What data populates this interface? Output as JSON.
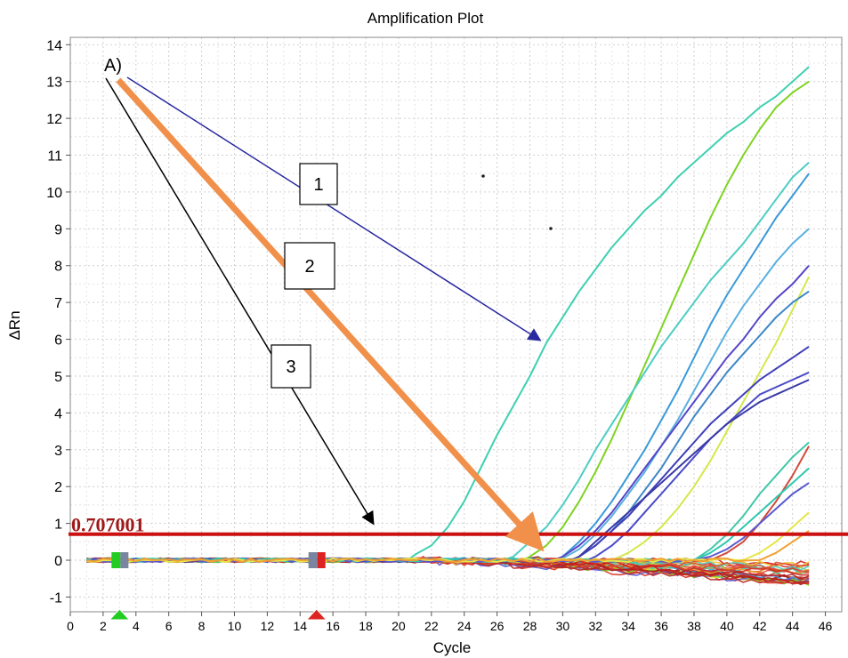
{
  "chart_data": {
    "type": "line",
    "title": "Amplification Plot",
    "xlabel": "Cycle",
    "ylabel": "ΔRn",
    "xlim": [
      0,
      47
    ],
    "ylim": [
      -1.4,
      14.2
    ],
    "x_ticks": [
      0,
      2,
      4,
      6,
      8,
      10,
      12,
      14,
      16,
      18,
      20,
      22,
      24,
      26,
      28,
      30,
      32,
      34,
      36,
      38,
      40,
      42,
      44,
      46
    ],
    "y_ticks": [
      -1,
      0,
      1,
      2,
      3,
      4,
      5,
      6,
      7,
      8,
      9,
      10,
      11,
      12,
      13,
      14
    ],
    "grid": true,
    "threshold": {
      "value": 0.707001,
      "label": "0.707001",
      "color": "#cc1111"
    },
    "baseline_markers": [
      {
        "cycle": 3,
        "color": "#22cc22"
      },
      {
        "cycle": 15,
        "color": "#dd2222"
      }
    ],
    "annotations": {
      "panel_label": "A)",
      "boxes": [
        {
          "label": "1",
          "color": "#2a2aa0"
        },
        {
          "label": "2",
          "color": "#f0904a"
        },
        {
          "label": "3",
          "color": "#000000"
        }
      ]
    },
    "series": [
      {
        "color": "#3fd0b0",
        "start": 21,
        "points": [
          [
            21,
            0.15
          ],
          [
            22,
            0.4
          ],
          [
            23,
            0.9
          ],
          [
            24,
            1.6
          ],
          [
            25,
            2.5
          ],
          [
            26,
            3.4
          ],
          [
            27,
            4.2
          ],
          [
            28,
            5.0
          ],
          [
            29,
            5.9
          ],
          [
            30,
            6.6
          ],
          [
            31,
            7.3
          ],
          [
            32,
            7.9
          ],
          [
            33,
            8.5
          ],
          [
            34,
            9.0
          ],
          [
            35,
            9.5
          ],
          [
            36,
            9.9
          ],
          [
            37,
            10.4
          ],
          [
            38,
            10.8
          ],
          [
            39,
            11.2
          ],
          [
            40,
            11.6
          ],
          [
            41,
            11.9
          ],
          [
            42,
            12.3
          ],
          [
            43,
            12.6
          ],
          [
            44,
            13.0
          ],
          [
            45,
            13.4
          ]
        ]
      },
      {
        "color": "#7ed321",
        "start": 28,
        "points": [
          [
            28,
            0.1
          ],
          [
            29,
            0.4
          ],
          [
            30,
            0.9
          ],
          [
            31,
            1.6
          ],
          [
            32,
            2.4
          ],
          [
            33,
            3.3
          ],
          [
            34,
            4.3
          ],
          [
            35,
            5.3
          ],
          [
            36,
            6.3
          ],
          [
            37,
            7.3
          ],
          [
            38,
            8.3
          ],
          [
            39,
            9.3
          ],
          [
            40,
            10.2
          ],
          [
            41,
            11.0
          ],
          [
            42,
            11.7
          ],
          [
            43,
            12.3
          ],
          [
            44,
            12.7
          ],
          [
            45,
            13.0
          ]
        ]
      },
      {
        "color": "#4ecdc4",
        "start": 27,
        "points": [
          [
            27,
            0.1
          ],
          [
            28,
            0.5
          ],
          [
            29,
            0.9
          ],
          [
            30,
            1.5
          ],
          [
            31,
            2.2
          ],
          [
            32,
            3.0
          ],
          [
            33,
            3.7
          ],
          [
            34,
            4.4
          ],
          [
            35,
            5.1
          ],
          [
            36,
            5.8
          ],
          [
            37,
            6.4
          ],
          [
            38,
            7.0
          ],
          [
            39,
            7.6
          ],
          [
            40,
            8.1
          ],
          [
            41,
            8.6
          ],
          [
            42,
            9.2
          ],
          [
            43,
            9.8
          ],
          [
            44,
            10.4
          ],
          [
            45,
            10.8
          ]
        ]
      },
      {
        "color": "#3a9ad9",
        "start": 30,
        "points": [
          [
            30,
            0.1
          ],
          [
            31,
            0.5
          ],
          [
            32,
            1.0
          ],
          [
            33,
            1.6
          ],
          [
            34,
            2.3
          ],
          [
            35,
            3.0
          ],
          [
            36,
            3.8
          ],
          [
            37,
            4.6
          ],
          [
            38,
            5.5
          ],
          [
            39,
            6.4
          ],
          [
            40,
            7.2
          ],
          [
            41,
            7.9
          ],
          [
            42,
            8.6
          ],
          [
            43,
            9.3
          ],
          [
            44,
            9.9
          ],
          [
            45,
            10.5
          ]
        ]
      },
      {
        "color": "#5ab0e0",
        "start": 30,
        "points": [
          [
            30,
            0.05
          ],
          [
            31,
            0.3
          ],
          [
            32,
            0.7
          ],
          [
            33,
            1.2
          ],
          [
            34,
            1.8
          ],
          [
            35,
            2.4
          ],
          [
            36,
            3.1
          ],
          [
            37,
            3.8
          ],
          [
            38,
            4.6
          ],
          [
            39,
            5.4
          ],
          [
            40,
            6.2
          ],
          [
            41,
            6.9
          ],
          [
            42,
            7.5
          ],
          [
            43,
            8.1
          ],
          [
            44,
            8.6
          ],
          [
            45,
            9.0
          ]
        ]
      },
      {
        "color": "#d4e84a",
        "start": 33,
        "points": [
          [
            33,
            0.0
          ],
          [
            34,
            0.2
          ],
          [
            35,
            0.5
          ],
          [
            36,
            0.9
          ],
          [
            37,
            1.4
          ],
          [
            38,
            2.0
          ],
          [
            39,
            2.7
          ],
          [
            40,
            3.5
          ],
          [
            41,
            4.3
          ],
          [
            42,
            5.1
          ],
          [
            43,
            5.9
          ],
          [
            44,
            6.8
          ],
          [
            45,
            7.7
          ]
        ]
      },
      {
        "color": "#5546c8",
        "start": 30,
        "points": [
          [
            30,
            0.1
          ],
          [
            31,
            0.4
          ],
          [
            32,
            0.8
          ],
          [
            33,
            1.3
          ],
          [
            34,
            1.9
          ],
          [
            35,
            2.5
          ],
          [
            36,
            3.1
          ],
          [
            37,
            3.7
          ],
          [
            38,
            4.3
          ],
          [
            39,
            4.9
          ],
          [
            40,
            5.5
          ],
          [
            41,
            6.0
          ],
          [
            42,
            6.6
          ],
          [
            43,
            7.1
          ],
          [
            44,
            7.5
          ],
          [
            45,
            8.0
          ]
        ]
      },
      {
        "color": "#3d87c7",
        "start": 31,
        "points": [
          [
            31,
            0.1
          ],
          [
            32,
            0.4
          ],
          [
            33,
            0.8
          ],
          [
            34,
            1.3
          ],
          [
            35,
            1.9
          ],
          [
            36,
            2.5
          ],
          [
            37,
            3.2
          ],
          [
            38,
            3.9
          ],
          [
            39,
            4.5
          ],
          [
            40,
            5.1
          ],
          [
            41,
            5.6
          ],
          [
            42,
            6.1
          ],
          [
            43,
            6.6
          ],
          [
            44,
            7.0
          ],
          [
            45,
            7.3
          ]
        ]
      },
      {
        "color": "#3f3fb8",
        "start": 31,
        "points": [
          [
            31,
            0.1
          ],
          [
            32,
            0.4
          ],
          [
            33,
            0.8
          ],
          [
            34,
            1.2
          ],
          [
            35,
            1.7
          ],
          [
            36,
            2.2
          ],
          [
            37,
            2.7
          ],
          [
            38,
            3.2
          ],
          [
            39,
            3.7
          ],
          [
            40,
            4.1
          ],
          [
            41,
            4.5
          ],
          [
            42,
            4.9
          ],
          [
            43,
            5.2
          ],
          [
            44,
            5.5
          ],
          [
            45,
            5.8
          ]
        ]
      },
      {
        "color": "#4a4ac8",
        "start": 32,
        "points": [
          [
            32,
            0.1
          ],
          [
            33,
            0.4
          ],
          [
            34,
            0.8
          ],
          [
            35,
            1.3
          ],
          [
            36,
            1.8
          ],
          [
            37,
            2.3
          ],
          [
            38,
            2.8
          ],
          [
            39,
            3.3
          ],
          [
            40,
            3.7
          ],
          [
            41,
            4.1
          ],
          [
            42,
            4.5
          ],
          [
            43,
            4.7
          ],
          [
            44,
            4.9
          ],
          [
            45,
            5.1
          ]
        ]
      },
      {
        "color": "#3a3aa8",
        "start": 31,
        "points": [
          [
            31,
            0.1
          ],
          [
            32,
            0.5
          ],
          [
            33,
            0.9
          ],
          [
            34,
            1.3
          ],
          [
            35,
            1.7
          ],
          [
            36,
            2.1
          ],
          [
            37,
            2.5
          ],
          [
            38,
            2.9
          ],
          [
            39,
            3.3
          ],
          [
            40,
            3.7
          ],
          [
            41,
            4.0
          ],
          [
            42,
            4.3
          ],
          [
            43,
            4.5
          ],
          [
            44,
            4.7
          ],
          [
            45,
            4.9
          ]
        ]
      },
      {
        "color": "#40c8a8",
        "start": 38,
        "points": [
          [
            38,
            0.0
          ],
          [
            39,
            0.3
          ],
          [
            40,
            0.7
          ],
          [
            41,
            1.2
          ],
          [
            42,
            1.8
          ],
          [
            43,
            2.3
          ],
          [
            44,
            2.8
          ],
          [
            45,
            3.2
          ]
        ]
      },
      {
        "color": "#d24a3a",
        "start": 39,
        "points": [
          [
            39,
            0.0
          ],
          [
            40,
            0.2
          ],
          [
            41,
            0.5
          ],
          [
            42,
            1.0
          ],
          [
            43,
            1.6
          ],
          [
            44,
            2.3
          ],
          [
            45,
            3.1
          ]
        ]
      },
      {
        "color": "#2ec8b0",
        "start": 38,
        "points": [
          [
            38,
            0.0
          ],
          [
            39,
            0.2
          ],
          [
            40,
            0.5
          ],
          [
            41,
            0.9
          ],
          [
            42,
            1.3
          ],
          [
            43,
            1.7
          ],
          [
            44,
            2.1
          ],
          [
            45,
            2.5
          ]
        ]
      },
      {
        "color": "#5a5ad0",
        "start": 38,
        "points": [
          [
            38,
            0.0
          ],
          [
            39,
            0.1
          ],
          [
            40,
            0.3
          ],
          [
            41,
            0.6
          ],
          [
            42,
            1.0
          ],
          [
            43,
            1.4
          ],
          [
            44,
            1.8
          ],
          [
            45,
            2.1
          ]
        ]
      },
      {
        "color": "#e6e64a",
        "start": 41,
        "points": [
          [
            41,
            0.0
          ],
          [
            42,
            0.2
          ],
          [
            43,
            0.5
          ],
          [
            44,
            0.9
          ],
          [
            45,
            1.3
          ]
        ]
      },
      {
        "color": "#f0a030",
        "start": 42,
        "points": [
          [
            42,
            0.0
          ],
          [
            43,
            0.2
          ],
          [
            44,
            0.5
          ],
          [
            45,
            0.8
          ]
        ]
      }
    ]
  }
}
